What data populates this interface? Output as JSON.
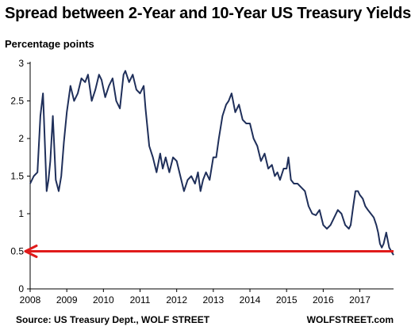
{
  "title": "Spread between 2-Year and 10-Year US Treasury Yields",
  "ylabel": "Percentage points",
  "source": "Source: US Treasury Dept., WOLF STREET",
  "brand": "WOLFSTREET.com",
  "chart_data": {
    "type": "line",
    "title": "Spread between 2-Year and 10-Year US Treasury Yields",
    "ylabel": "Percentage points",
    "xlabel": "",
    "xlim": [
      2008,
      2017.92
    ],
    "ylim": [
      0,
      3
    ],
    "yticks": [
      0,
      0.5,
      1,
      1.5,
      2,
      2.5,
      3
    ],
    "yticklabels": [
      "0",
      "0.5",
      "1",
      "1.5",
      "2",
      "2.5",
      "3"
    ],
    "xticks": [
      2008,
      2009,
      2010,
      2011,
      2012,
      2013,
      2014,
      2015,
      2016,
      2017
    ],
    "xticklabels": [
      "2008",
      "2009",
      "2010",
      "2011",
      "2012",
      "2013",
      "2014",
      "2015",
      "2016",
      "2017"
    ],
    "grid": false,
    "line_color": "#1f2f5a",
    "reference_line": {
      "y": 0.5,
      "color": "#e01b1b",
      "arrow": "left"
    },
    "series": [
      {
        "x": [
          2008.0,
          2008.1,
          2008.2,
          2008.28,
          2008.35,
          2008.45,
          2008.5,
          2008.55,
          2008.62,
          2008.7,
          2008.78,
          2008.85,
          2008.92,
          2009.0,
          2009.1,
          2009.2,
          2009.3,
          2009.4,
          2009.5,
          2009.58,
          2009.68,
          2009.78,
          2009.88,
          2009.95,
          2010.05,
          2010.15,
          2010.25,
          2010.35,
          2010.45,
          2010.55,
          2010.6,
          2010.7,
          2010.8,
          2010.9,
          2011.0,
          2011.1,
          2011.15,
          2011.25,
          2011.35,
          2011.45,
          2011.55,
          2011.62,
          2011.7,
          2011.8,
          2011.9,
          2012.0,
          2012.1,
          2012.2,
          2012.3,
          2012.4,
          2012.5,
          2012.58,
          2012.65,
          2012.72,
          2012.8,
          2012.9,
          2013.0,
          2013.08,
          2013.15,
          2013.25,
          2013.35,
          2013.42,
          2013.5,
          2013.6,
          2013.7,
          2013.8,
          2013.9,
          2014.0,
          2014.1,
          2014.2,
          2014.3,
          2014.4,
          2014.5,
          2014.6,
          2014.68,
          2014.75,
          2014.82,
          2014.92,
          2015.0,
          2015.05,
          2015.12,
          2015.2,
          2015.3,
          2015.4,
          2015.5,
          2015.6,
          2015.7,
          2015.8,
          2015.9,
          2016.0,
          2016.1,
          2016.2,
          2016.3,
          2016.4,
          2016.5,
          2016.6,
          2016.7,
          2016.75,
          2016.82,
          2016.88,
          2016.95,
          2017.0,
          2017.08,
          2017.15,
          2017.22,
          2017.3,
          2017.38,
          2017.45,
          2017.5,
          2017.55,
          2017.6,
          2017.65,
          2017.72,
          2017.8,
          2017.86,
          2017.92
        ],
        "y": [
          1.4,
          1.5,
          1.55,
          2.3,
          2.6,
          1.3,
          1.45,
          1.7,
          2.3,
          1.45,
          1.3,
          1.5,
          1.95,
          2.35,
          2.7,
          2.5,
          2.6,
          2.8,
          2.75,
          2.85,
          2.5,
          2.65,
          2.85,
          2.78,
          2.55,
          2.7,
          2.8,
          2.5,
          2.4,
          2.85,
          2.9,
          2.75,
          2.85,
          2.65,
          2.6,
          2.7,
          2.4,
          1.9,
          1.75,
          1.55,
          1.8,
          1.6,
          1.75,
          1.55,
          1.75,
          1.7,
          1.5,
          1.3,
          1.45,
          1.5,
          1.4,
          1.55,
          1.3,
          1.45,
          1.55,
          1.45,
          1.75,
          1.75,
          2.0,
          2.3,
          2.45,
          2.5,
          2.6,
          2.35,
          2.45,
          2.25,
          2.2,
          2.2,
          2.0,
          1.9,
          1.7,
          1.8,
          1.6,
          1.65,
          1.5,
          1.55,
          1.45,
          1.6,
          1.6,
          1.75,
          1.45,
          1.4,
          1.4,
          1.35,
          1.3,
          1.1,
          1.0,
          0.98,
          1.05,
          0.85,
          0.8,
          0.85,
          0.95,
          1.05,
          1.0,
          0.85,
          0.8,
          0.85,
          1.1,
          1.3,
          1.3,
          1.25,
          1.2,
          1.1,
          1.05,
          1.0,
          0.95,
          0.85,
          0.75,
          0.6,
          0.55,
          0.6,
          0.75,
          0.55,
          0.5,
          0.45
        ]
      }
    ]
  }
}
